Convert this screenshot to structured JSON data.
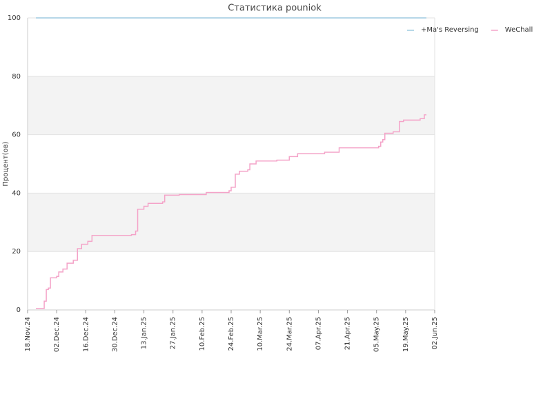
{
  "chart_data": {
    "type": "line",
    "title": "Статистика pouniok",
    "y_label": "Процент(ов)",
    "xlim": [
      "2024-11-18",
      "2025-06-02"
    ],
    "xticks": [
      {
        "value": "2024-11-18",
        "label": "18.Nov.24"
      },
      {
        "value": "2024-12-02",
        "label": "02.Dec.24"
      },
      {
        "value": "2024-12-16",
        "label": "16.Dec.24"
      },
      {
        "value": "2024-12-30",
        "label": "30.Dec.24"
      },
      {
        "value": "2025-01-13",
        "label": "13.Jan.25"
      },
      {
        "value": "2025-01-27",
        "label": "27.Jan.25"
      },
      {
        "value": "2025-02-10",
        "label": "10.Feb.25"
      },
      {
        "value": "2025-02-24",
        "label": "24.Feb.25"
      },
      {
        "value": "2025-03-10",
        "label": "10.Mar.25"
      },
      {
        "value": "2025-03-24",
        "label": "24.Mar.25"
      },
      {
        "value": "2025-04-07",
        "label": "07.Apr.25"
      },
      {
        "value": "2025-04-21",
        "label": "21.Apr.25"
      },
      {
        "value": "2025-05-05",
        "label": "05.May.25"
      },
      {
        "value": "2025-05-19",
        "label": "19.May.25"
      },
      {
        "value": "2025-06-02",
        "label": "02.Jun.25"
      }
    ],
    "ylim": [
      0,
      100
    ],
    "yticks": [
      0,
      20,
      40,
      60,
      80,
      100
    ],
    "grid": true,
    "legend": "top-right",
    "series": [
      {
        "name": "+Ma's Reversing",
        "color": "#9ecae1",
        "x": [
          "2024-11-22",
          "2025-05-29"
        ],
        "values": [
          100,
          100
        ]
      },
      {
        "name": "WeChall",
        "color": "#f4a3c8",
        "x": [
          "2024-11-22",
          "2024-11-25",
          "2024-11-26",
          "2024-11-27",
          "2024-11-28",
          "2024-11-29",
          "2024-12-02",
          "2024-12-03",
          "2024-12-05",
          "2024-12-07",
          "2024-12-10",
          "2024-12-12",
          "2024-12-14",
          "2024-12-17",
          "2024-12-19",
          "2024-12-28",
          "2025-01-07",
          "2025-01-09",
          "2025-01-10",
          "2025-01-13",
          "2025-01-15",
          "2025-01-22",
          "2025-01-23",
          "2025-01-30",
          "2025-02-12",
          "2025-02-23",
          "2025-02-24",
          "2025-02-26",
          "2025-02-28",
          "2025-03-04",
          "2025-03-05",
          "2025-03-08",
          "2025-03-18",
          "2025-03-24",
          "2025-03-28",
          "2025-04-10",
          "2025-04-17",
          "2025-05-06",
          "2025-05-07",
          "2025-05-08",
          "2025-05-09",
          "2025-05-13",
          "2025-05-16",
          "2025-05-18",
          "2025-05-26",
          "2025-05-28",
          "2025-05-29"
        ],
        "values": [
          0.5,
          0.5,
          3,
          7,
          7.5,
          11,
          11.5,
          13,
          14,
          16,
          17,
          21,
          22.5,
          23.5,
          25.5,
          25.5,
          25.8,
          27,
          34.5,
          35.5,
          36.5,
          37,
          39.3,
          39.5,
          40.2,
          40.8,
          42,
          46.5,
          47.5,
          48,
          50,
          51,
          51.3,
          52.5,
          53.5,
          54,
          55.5,
          56,
          57.5,
          58.3,
          60.5,
          61,
          64.5,
          65,
          65.5,
          66.8,
          66.8
        ]
      }
    ]
  }
}
